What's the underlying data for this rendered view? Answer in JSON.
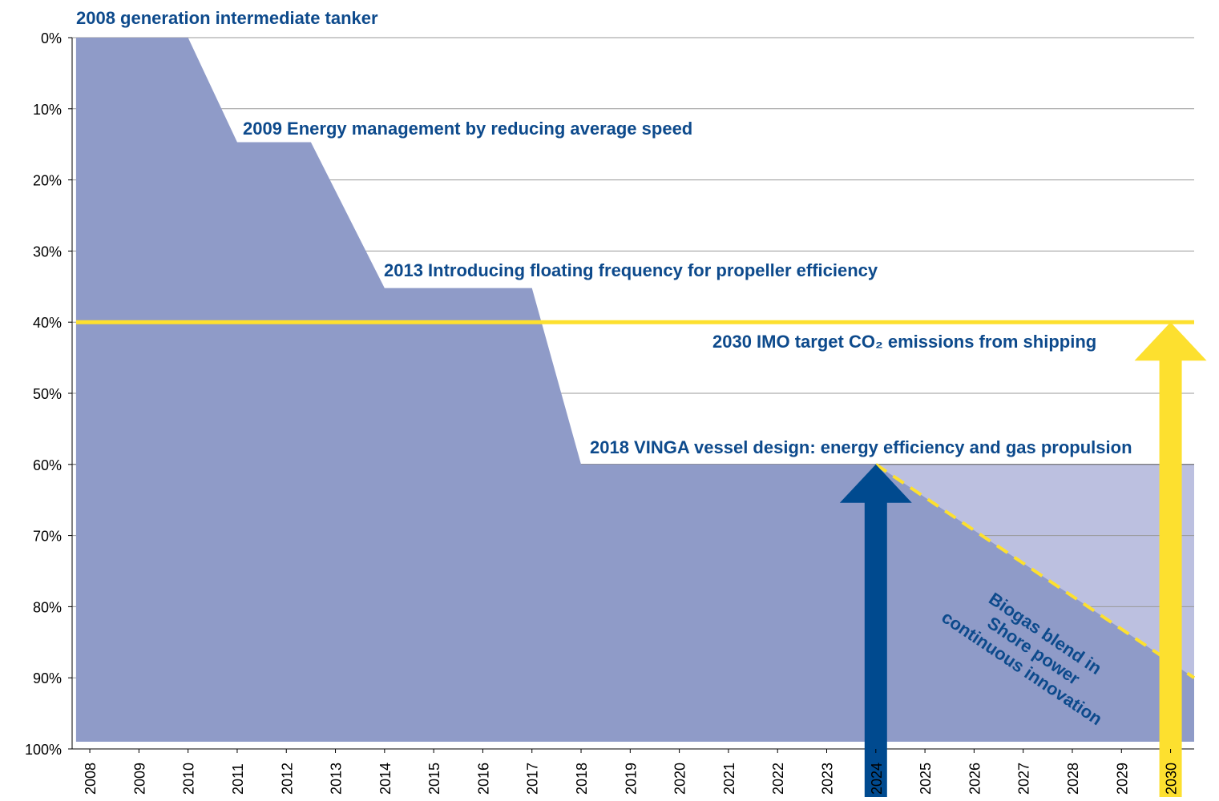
{
  "chart_data": {
    "type": "area",
    "xlim": [
      2007.64,
      2030.48
    ],
    "xticks": [
      2008,
      2009,
      2010,
      2011,
      2012,
      2013,
      2014,
      2015,
      2016,
      2017,
      2018,
      2019,
      2020,
      2021,
      2022,
      2023,
      2024,
      2025,
      2026,
      2027,
      2028,
      2029,
      2030
    ],
    "ylim": [
      0,
      100
    ],
    "y_inverted": true,
    "yticks": [
      {
        "value": 0,
        "label": "0%"
      },
      {
        "value": 10,
        "label": "10%"
      },
      {
        "value": 20,
        "label": "20%"
      },
      {
        "value": 30,
        "label": "30%"
      },
      {
        "value": 40,
        "label": "40%"
      },
      {
        "value": 50,
        "label": "50%"
      },
      {
        "value": 60,
        "label": "60%"
      },
      {
        "value": 70,
        "label": "70%"
      },
      {
        "value": 80,
        "label": "80%"
      },
      {
        "value": 90,
        "label": "90%"
      },
      {
        "value": 100,
        "label": "100%"
      }
    ],
    "grid": true,
    "series": [
      {
        "color": "#bcc0e0",
        "x": [
          2024,
          2030.48
        ],
        "values": [
          60,
          60
        ]
      },
      {
        "color": "#8f9bc8",
        "x": [
          2007.72,
          2010,
          2011,
          2012.5,
          2014,
          2017,
          2018,
          2024,
          2030.48
        ],
        "values": [
          0,
          0,
          14.7,
          14.7,
          35.2,
          35.2,
          60,
          60,
          90
        ]
      }
    ],
    "projection": {
      "color": "#fde02f",
      "x": [
        2024,
        2030.48
      ],
      "values": [
        60,
        90
      ]
    },
    "target": {
      "value": 40,
      "color": "#fde02f"
    },
    "arrows": [
      {
        "x": 2024,
        "value": 60,
        "color": "#004a8f"
      },
      {
        "x": 2030,
        "value": 40,
        "color": "#fde02f"
      }
    ],
    "annotations": [
      "2008 generation intermediate tanker",
      "2009 Energy management by reducing average speed",
      "2013 Introducing floating frequency for propeller efficiency",
      "2030 IMO target CO₂ emissions from shipping",
      "2018 VINGA vessel design: energy efficiency and gas propulsion"
    ],
    "rotated_note": [
      "Biogas blend in",
      "Shore power",
      "continuous innovation"
    ]
  }
}
